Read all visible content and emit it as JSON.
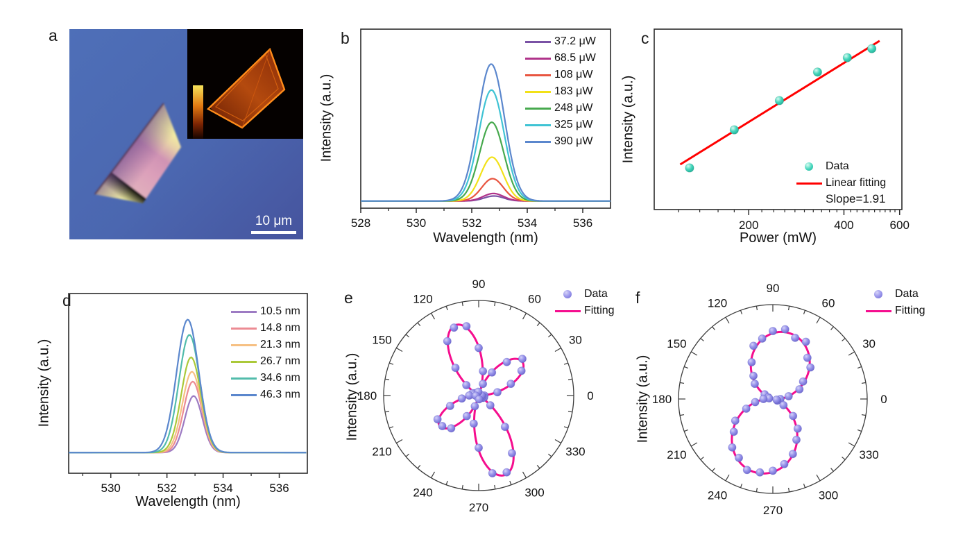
{
  "figure": {
    "panel_labels": {
      "a": "a",
      "b": "b",
      "c": "c",
      "d": "d",
      "e": "e",
      "f": "f"
    }
  },
  "panel_a": {
    "scale_bar": "10 μm",
    "description": "optical image of exfoliated flake with SHG mapping inset",
    "colors": {
      "background": "#4b67b0",
      "flake_edge": "#f2f0a0",
      "flake_center": "#d79ab8",
      "inset_bg": "#050100",
      "inset_flake": "#ff8c1a"
    }
  },
  "chart_data": [
    {
      "panel": "b",
      "type": "line",
      "xlabel": "Wavelength (nm)",
      "ylabel": "Intensity (a.u.)",
      "x_range": [
        528,
        537
      ],
      "x_ticks": [
        528,
        530,
        532,
        534,
        536
      ],
      "x_minor_ticks": [
        529,
        531,
        533,
        535
      ],
      "baseline": 0.04,
      "series": [
        {
          "label": "37.2 μW",
          "color": "#7a52a5",
          "height": 0.028,
          "width": 0.5,
          "center": 532.8
        },
        {
          "label": "68.5 μW",
          "color": "#b0338a",
          "height": 0.042,
          "width": 0.52,
          "center": 532.78
        },
        {
          "label": "108 μW",
          "color": "#e85540",
          "height": 0.125,
          "width": 0.55,
          "center": 532.75
        },
        {
          "label": "183 μW",
          "color": "#f2e118",
          "height": 0.245,
          "width": 0.58,
          "center": 532.73
        },
        {
          "label": "248 μW",
          "color": "#47a94e",
          "height": 0.44,
          "width": 0.62,
          "center": 532.72
        },
        {
          "label": "325 μW",
          "color": "#3fc3d4",
          "height": 0.62,
          "width": 0.65,
          "center": 532.71
        },
        {
          "label": "390 μW",
          "color": "#5b87cd",
          "height": 0.765,
          "width": 0.68,
          "center": 532.7
        }
      ]
    },
    {
      "panel": "c",
      "type": "scatter",
      "xlabel": "Power (mW)",
      "ylabel": "Intensity (a.u.)",
      "x_scale": "log",
      "x_range": [
        100.5,
        610
      ],
      "x_ticks": [
        200,
        400,
        600
      ],
      "points_power_vs_yfrac": [
        [
          130,
          0.769
        ],
        [
          180,
          0.558
        ],
        [
          250,
          0.396
        ],
        [
          330,
          0.238
        ],
        [
          410,
          0.158
        ],
        [
          490,
          0.108
        ]
      ],
      "fit_line_frac": [
        [
          0.105,
          0.75
        ],
        [
          0.91,
          0.065
        ]
      ],
      "legend": {
        "data": "Data",
        "fit": "Linear fitting",
        "slope": "Slope=1.91"
      },
      "colors": {
        "point": "#41d6bd",
        "fit": "#ff0000"
      }
    },
    {
      "panel": "d",
      "type": "line",
      "xlabel": "Wavelength (nm)",
      "ylabel": "Intensity (a.u.)",
      "x_range": [
        528.5,
        537
      ],
      "x_ticks": [
        530,
        532,
        534,
        536
      ],
      "x_minor_ticks": [
        529,
        531,
        533,
        535
      ],
      "baseline": 0.115,
      "series": [
        {
          "label": "10.5 nm",
          "color": "#9d7bc3",
          "height": 0.315,
          "width": 0.44,
          "center": 532.95
        },
        {
          "label": "14.8 nm",
          "color": "#ec8b93",
          "height": 0.395,
          "width": 0.46,
          "center": 532.92
        },
        {
          "label": "21.3 nm",
          "color": "#f6c083",
          "height": 0.45,
          "width": 0.48,
          "center": 532.89
        },
        {
          "label": "26.7 nm",
          "color": "#abc939",
          "height": 0.53,
          "width": 0.5,
          "center": 532.86
        },
        {
          "label": "34.6 nm",
          "color": "#52bcab",
          "height": 0.655,
          "width": 0.53,
          "center": 532.8
        },
        {
          "label": "46.3 nm",
          "color": "#5b87cd",
          "height": 0.74,
          "width": 0.56,
          "center": 532.74
        }
      ]
    },
    {
      "panel": "e",
      "type": "polar",
      "ylabel": "Intensity (a.u.)",
      "angle_labels": [
        0,
        30,
        60,
        90,
        120,
        150,
        180,
        210,
        240,
        270,
        300,
        330
      ],
      "minor_tick_deg": 10,
      "major_tick_deg": 30,
      "fit": {
        "kind": "rose",
        "k": 2,
        "exponent": 2,
        "petals": [
          {
            "angle": 108,
            "length": 0.78
          },
          {
            "angle": 288,
            "length": 0.88
          },
          {
            "angle": 38,
            "length": 0.58
          },
          {
            "angle": 218,
            "length": 0.52
          }
        ]
      },
      "data_points": [
        [
          0,
          0.06
        ],
        [
          10,
          0.2
        ],
        [
          20,
          0.36
        ],
        [
          30,
          0.52
        ],
        [
          40,
          0.6
        ],
        [
          50,
          0.46
        ],
        [
          60,
          0.28
        ],
        [
          70,
          0.13
        ],
        [
          80,
          0.26
        ],
        [
          90,
          0.5
        ],
        [
          100,
          0.74
        ],
        [
          110,
          0.76
        ],
        [
          120,
          0.66
        ],
        [
          130,
          0.38
        ],
        [
          140,
          0.17
        ],
        [
          150,
          0.05
        ],
        [
          160,
          0.07
        ],
        [
          170,
          0.06
        ],
        [
          180,
          0.1
        ],
        [
          190,
          0.18
        ],
        [
          200,
          0.32
        ],
        [
          210,
          0.5
        ],
        [
          220,
          0.5
        ],
        [
          230,
          0.45
        ],
        [
          240,
          0.25
        ],
        [
          250,
          0.12
        ],
        [
          260,
          0.3
        ],
        [
          270,
          0.55
        ],
        [
          280,
          0.83
        ],
        [
          290,
          0.86
        ],
        [
          300,
          0.7
        ],
        [
          310,
          0.43
        ],
        [
          320,
          0.16
        ],
        [
          330,
          0.05
        ],
        [
          340,
          0.06
        ],
        [
          350,
          0.04
        ],
        [
          5,
          0.03
        ],
        [
          95,
          0.04
        ],
        [
          185,
          0.03
        ],
        [
          275,
          0.04
        ]
      ],
      "legend": {
        "data": "Data",
        "fit": "Fitting"
      },
      "colors": {
        "point": "#8f8be8",
        "fit": "#f50d8e"
      }
    },
    {
      "panel": "f",
      "type": "polar",
      "ylabel": "Intensity (a.u.)",
      "angle_labels": [
        0,
        30,
        60,
        90,
        120,
        150,
        180,
        210,
        240,
        270,
        300,
        330
      ],
      "minor_tick_deg": 10,
      "major_tick_deg": 30,
      "fit": {
        "kind": "dipole",
        "k": 1,
        "exponent": 1.5,
        "petals": [
          {
            "angle": 78,
            "length": 0.72
          },
          {
            "angle": 258,
            "length": 0.8
          }
        ]
      },
      "data_points": [
        [
          0,
          0.08
        ],
        [
          10,
          0.17
        ],
        [
          20,
          0.3
        ],
        [
          30,
          0.37
        ],
        [
          40,
          0.52
        ],
        [
          50,
          0.57
        ],
        [
          60,
          0.7
        ],
        [
          70,
          0.69
        ],
        [
          80,
          0.75
        ],
        [
          90,
          0.72
        ],
        [
          100,
          0.65
        ],
        [
          110,
          0.6
        ],
        [
          120,
          0.45
        ],
        [
          130,
          0.32
        ],
        [
          140,
          0.25
        ],
        [
          150,
          0.1
        ],
        [
          160,
          0.05
        ],
        [
          170,
          0.04
        ],
        [
          180,
          0.1
        ],
        [
          190,
          0.19
        ],
        [
          200,
          0.3
        ],
        [
          210,
          0.46
        ],
        [
          220,
          0.54
        ],
        [
          230,
          0.67
        ],
        [
          240,
          0.72
        ],
        [
          250,
          0.8
        ],
        [
          260,
          0.79
        ],
        [
          270,
          0.76
        ],
        [
          280,
          0.7
        ],
        [
          290,
          0.62
        ],
        [
          300,
          0.5
        ],
        [
          310,
          0.41
        ],
        [
          320,
          0.28
        ],
        [
          330,
          0.13
        ],
        [
          340,
          0.05
        ],
        [
          350,
          0.04
        ]
      ],
      "legend": {
        "data": "Data",
        "fit": "Fitting"
      },
      "colors": {
        "point": "#8f8be8",
        "fit": "#f50d8e"
      }
    }
  ]
}
